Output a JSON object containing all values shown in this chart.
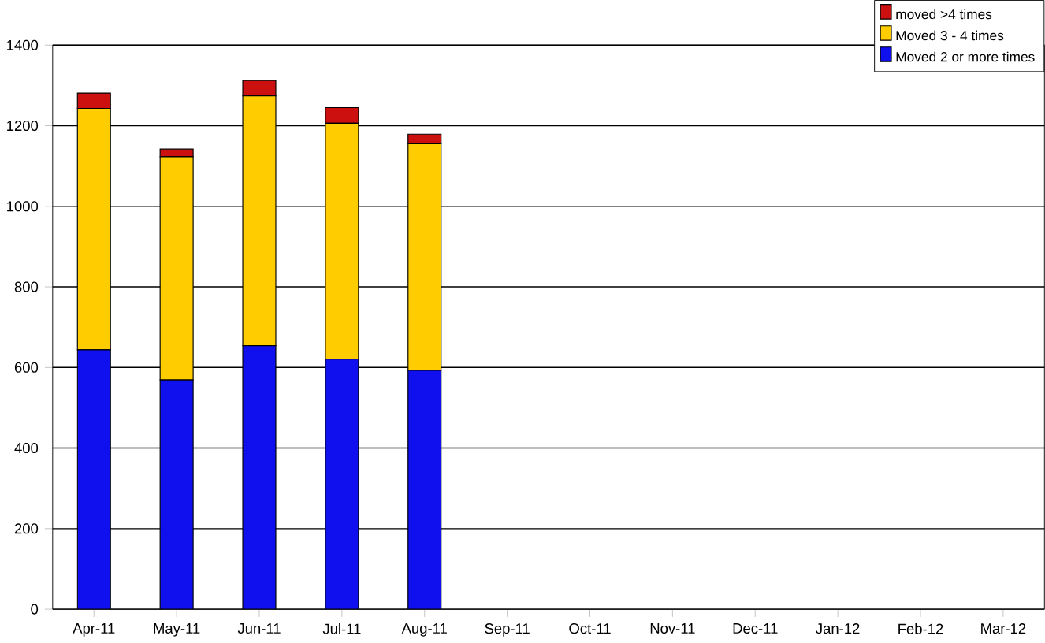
{
  "chart_data": {
    "type": "bar",
    "stacked": true,
    "categories": [
      "Apr-11",
      "May-11",
      "Jun-11",
      "Jul-11",
      "Aug-11",
      "Sep-11",
      "Oct-11",
      "Nov-11",
      "Dec-11",
      "Jan-12",
      "Feb-12",
      "Mar-12"
    ],
    "series": [
      {
        "name": "Moved 2 or more times",
        "color": "#1010ee",
        "values": [
          644,
          569,
          654,
          621,
          593,
          null,
          null,
          null,
          null,
          null,
          null,
          null
        ]
      },
      {
        "name": "Moved 3 - 4 times",
        "color": "#ffcc00",
        "values": [
          599,
          554,
          620,
          585,
          562,
          null,
          null,
          null,
          null,
          null,
          null,
          null
        ]
      },
      {
        "name": "moved >4 times",
        "color": "#cc1010",
        "values": [
          38,
          19,
          38,
          39,
          24,
          null,
          null,
          null,
          null,
          null,
          null,
          null
        ]
      }
    ],
    "ylim": [
      0,
      1400
    ],
    "yticks": [
      0,
      200,
      400,
      600,
      800,
      1000,
      1200,
      1400
    ],
    "grid": "y",
    "legend": "top right"
  }
}
